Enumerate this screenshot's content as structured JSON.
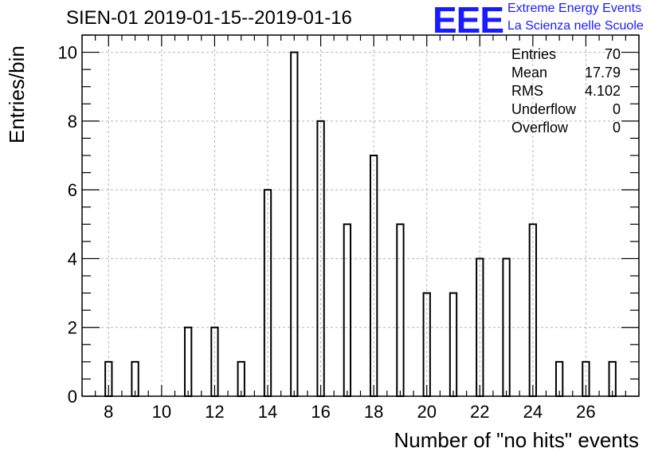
{
  "chart_data": {
    "type": "bar",
    "title": "SIEN-01 2019-01-15--2019-01-16",
    "xlabel": "Number of \"no hits\" events",
    "ylabel": "Entries/bin",
    "xlim": [
      7,
      28
    ],
    "ylim": [
      0,
      10.5
    ],
    "grid": true,
    "bin_width": 1,
    "bar_fraction": 0.25,
    "x": [
      8,
      9,
      10,
      11,
      12,
      13,
      14,
      15,
      16,
      17,
      18,
      19,
      20,
      21,
      22,
      23,
      24,
      25,
      26,
      27
    ],
    "values": [
      1,
      1,
      0,
      2,
      2,
      1,
      6,
      10,
      8,
      5,
      7,
      5,
      3,
      3,
      4,
      4,
      5,
      1,
      1,
      1
    ],
    "x_ticks": [
      8,
      10,
      12,
      14,
      16,
      18,
      20,
      22,
      24,
      26
    ],
    "y_ticks": [
      0,
      2,
      4,
      6,
      8,
      10
    ],
    "x_tick_labels": [
      "8",
      "10",
      "12",
      "14",
      "16",
      "18",
      "20",
      "22",
      "24",
      "26"
    ],
    "y_tick_labels": [
      "0",
      "2",
      "4",
      "6",
      "8",
      "10"
    ],
    "stats": {
      "entries_label": "Entries",
      "entries": "70",
      "mean_label": "Mean",
      "mean": "17.79",
      "rms_label": "RMS",
      "rms": "4.102",
      "underflow_label": "Underflow",
      "underflow": "0",
      "overflow_label": "Overflow",
      "overflow": "0"
    }
  },
  "logo": {
    "mark": "EEE",
    "line1": "Extreme Energy Events",
    "line2": "La Scienza nelle Scuole"
  },
  "colors": {
    "logo": "#1a1aff",
    "bar_stroke": "#000000",
    "grid": "#b4b4b4"
  }
}
